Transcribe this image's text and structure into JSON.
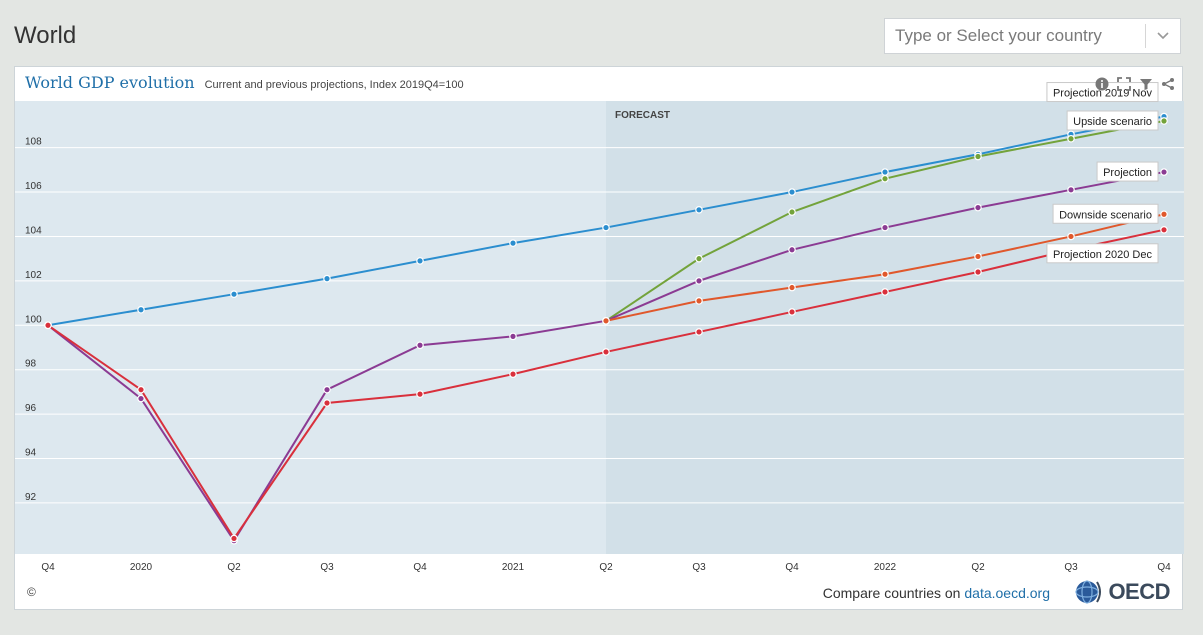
{
  "page": {
    "title": "World"
  },
  "country_select": {
    "placeholder": "Type or Select your country"
  },
  "card": {
    "title": "World GDP evolution",
    "subtitle": "Current and previous projections, Index 2019Q4=100",
    "forecast_label": "FORECAST",
    "copyright": "©",
    "compare_prefix": "Compare countries on ",
    "compare_link": "data.oecd.org",
    "logo_text": "OECD"
  },
  "chart_data": {
    "type": "line",
    "categories": [
      "Q4",
      "2020",
      "Q2",
      "Q3",
      "Q4",
      "2021",
      "Q2",
      "Q3",
      "Q4",
      "2022",
      "Q2",
      "Q3",
      "Q4"
    ],
    "ylim": [
      89.7,
      110.1
    ],
    "yticks": [
      92,
      94,
      96,
      98,
      100,
      102,
      104,
      106,
      108
    ],
    "forecast_start_index": 6,
    "grid": true,
    "series": [
      {
        "name": "Projection 2019 Nov",
        "color": "#2b8ecf",
        "values": [
          100,
          100.7,
          101.4,
          102.1,
          102.9,
          103.7,
          104.4,
          105.2,
          106.0,
          106.9,
          107.7,
          108.6,
          109.4
        ]
      },
      {
        "name": "Upside scenario",
        "color": "#73a33b",
        "values": [
          null,
          null,
          null,
          null,
          null,
          null,
          100.2,
          103.0,
          105.1,
          106.6,
          107.6,
          108.4,
          109.2
        ]
      },
      {
        "name": "Projection",
        "color": "#8b3b93",
        "values": [
          100,
          96.7,
          90.3,
          97.1,
          99.1,
          99.5,
          100.2,
          102.0,
          103.4,
          104.4,
          105.3,
          106.1,
          106.9
        ]
      },
      {
        "name": "Downside scenario",
        "color": "#e0582c",
        "values": [
          null,
          null,
          null,
          null,
          null,
          null,
          100.2,
          101.1,
          101.7,
          102.3,
          103.1,
          104.0,
          105.0
        ]
      },
      {
        "name": "Projection 2020 Dec",
        "color": "#d9303c",
        "values": [
          100,
          97.1,
          90.4,
          96.5,
          96.9,
          97.8,
          98.8,
          99.7,
          100.6,
          101.5,
          102.4,
          103.4,
          104.3
        ]
      }
    ]
  }
}
